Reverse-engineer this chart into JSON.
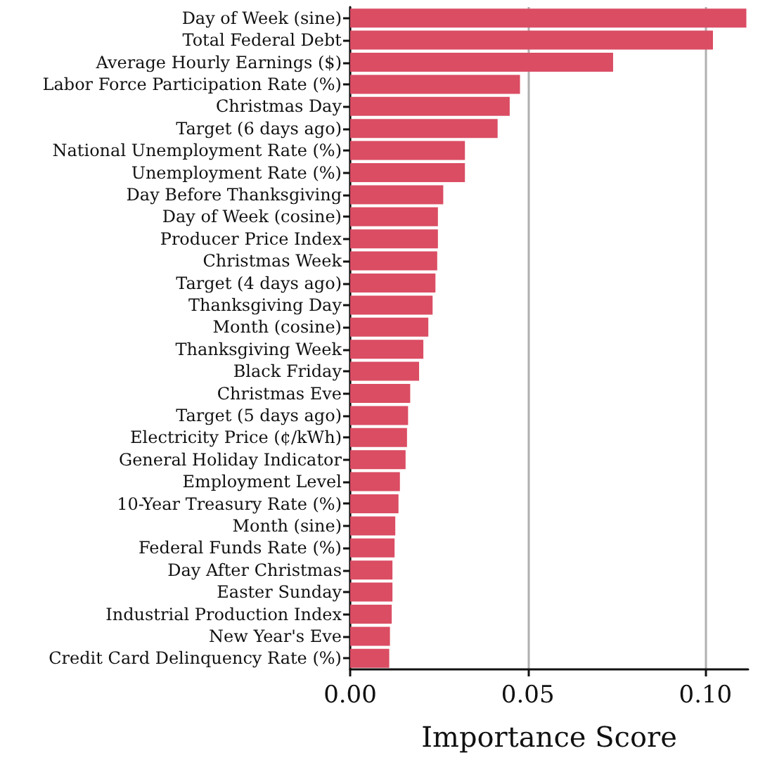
{
  "chart_data": {
    "type": "bar",
    "orientation": "horizontal",
    "xlabel": "Importance Score",
    "categories": [
      "Day of Week (sine)",
      "Total Federal Debt",
      "Average Hourly Earnings ($)",
      "Labor Force Participation Rate (%)",
      "Christmas Day",
      "Target (6 days ago)",
      "National Unemployment Rate (%)",
      "Unemployment Rate (%)",
      "Day Before Thanksgiving",
      "Day of Week (cosine)",
      "Producer Price Index",
      "Christmas Week",
      "Target (4 days ago)",
      "Thanksgiving Day",
      "Month (cosine)",
      "Thanksgiving Week",
      "Black Friday",
      "Christmas Eve",
      "Target (5 days ago)",
      "Electricity Price (¢/kWh)",
      "General Holiday Indicator",
      "Employment Level",
      "10-Year Treasury Rate (%)",
      "Month (sine)",
      "Federal Funds Rate (%)",
      "Day After Christmas",
      "Easter Sunday",
      "Industrial Production Index",
      "New Year's Eve",
      "Credit Card Delinquency Rate (%)"
    ],
    "values": [
      0.1115,
      0.1021,
      0.074,
      0.0478,
      0.0449,
      0.0415,
      0.0323,
      0.0323,
      0.0262,
      0.0247,
      0.0247,
      0.0245,
      0.024,
      0.0232,
      0.022,
      0.0206,
      0.0194,
      0.0169,
      0.0163,
      0.016,
      0.0156,
      0.014,
      0.0136,
      0.0127,
      0.0125,
      0.0119,
      0.0119,
      0.0117,
      0.0112,
      0.011
    ],
    "color": "#da4d63",
    "xlim": [
      0,
      0.112
    ],
    "xticks": [
      {
        "value": 0,
        "label": "0.00"
      },
      {
        "value": 0.05,
        "label": "0.05"
      },
      {
        "value": 0.1,
        "label": "0.10"
      }
    ],
    "grid": "x"
  }
}
